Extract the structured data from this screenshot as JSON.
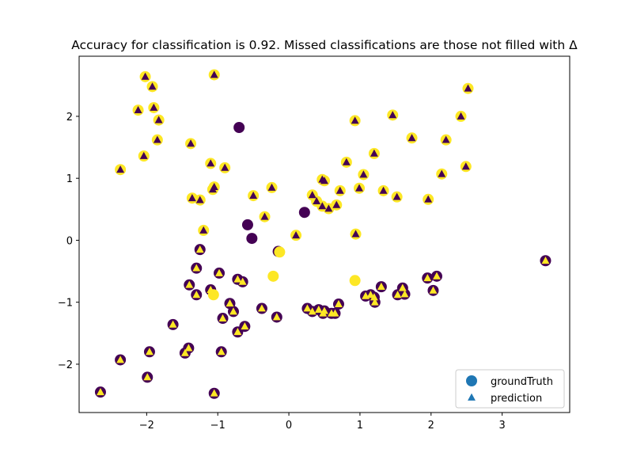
{
  "chart_data": {
    "type": "scatter",
    "title": "Accuracy for classification is 0.92. Missed classifications are those not filled with Δ",
    "xlabel": "",
    "ylabel": "",
    "xlim": [
      -2.95,
      3.95
    ],
    "ylim": [
      -2.78,
      2.97
    ],
    "xticks": [
      -2,
      -1,
      0,
      1,
      2,
      3
    ],
    "yticks": [
      -2,
      -1,
      0,
      1,
      2
    ],
    "grid": false,
    "legend_position": "lower-right",
    "colors": {
      "class0": "#440154",
      "class1": "#fde725",
      "legend": "#1f77b4",
      "axes": "#000000"
    },
    "legend": [
      {
        "label": "groundTruth",
        "marker": "circle"
      },
      {
        "label": "prediction",
        "marker": "triangle"
      }
    ],
    "series": [
      {
        "name": "groundTruth",
        "points": [
          {
            "x": -2.02,
            "y": 2.64,
            "c": 1
          },
          {
            "x": -1.92,
            "y": 2.48,
            "c": 1
          },
          {
            "x": -1.9,
            "y": 2.14,
            "c": 1
          },
          {
            "x": -2.12,
            "y": 2.1,
            "c": 1
          },
          {
            "x": -1.83,
            "y": 1.94,
            "c": 1
          },
          {
            "x": -1.85,
            "y": 1.62,
            "c": 1
          },
          {
            "x": -2.04,
            "y": 1.36,
            "c": 1
          },
          {
            "x": -2.37,
            "y": 1.14,
            "c": 1
          },
          {
            "x": -1.05,
            "y": 2.67,
            "c": 1
          },
          {
            "x": -1.38,
            "y": 1.56,
            "c": 1
          },
          {
            "x": -1.1,
            "y": 1.24,
            "c": 1
          },
          {
            "x": -0.9,
            "y": 1.17,
            "c": 1
          },
          {
            "x": -1.05,
            "y": 0.86,
            "c": 1
          },
          {
            "x": -1.07,
            "y": 0.82,
            "c": 1
          },
          {
            "x": -1.36,
            "y": 0.68,
            "c": 1
          },
          {
            "x": -1.25,
            "y": 0.65,
            "c": 1
          },
          {
            "x": -0.5,
            "y": 0.72,
            "c": 1
          },
          {
            "x": -0.24,
            "y": 0.85,
            "c": 1
          },
          {
            "x": -0.34,
            "y": 0.38,
            "c": 1
          },
          {
            "x": -1.2,
            "y": 0.16,
            "c": 1
          },
          {
            "x": -0.7,
            "y": 1.82,
            "c": 0
          },
          {
            "x": -0.58,
            "y": 0.25,
            "c": 0
          },
          {
            "x": -0.52,
            "y": 0.03,
            "c": 0
          },
          {
            "x": 0.22,
            "y": 0.45,
            "c": 0
          },
          {
            "x": 0.47,
            "y": 0.98,
            "c": 1
          },
          {
            "x": 0.5,
            "y": 0.96,
            "c": 1
          },
          {
            "x": 0.33,
            "y": 0.73,
            "c": 1
          },
          {
            "x": 0.39,
            "y": 0.63,
            "c": 1
          },
          {
            "x": 0.47,
            "y": 0.55,
            "c": 1
          },
          {
            "x": 0.56,
            "y": 0.51,
            "c": 1
          },
          {
            "x": 0.67,
            "y": 0.57,
            "c": 1
          },
          {
            "x": 0.72,
            "y": 0.8,
            "c": 1
          },
          {
            "x": 0.81,
            "y": 1.26,
            "c": 1
          },
          {
            "x": 0.93,
            "y": 1.93,
            "c": 1
          },
          {
            "x": 1.05,
            "y": 1.06,
            "c": 1
          },
          {
            "x": 0.99,
            "y": 0.84,
            "c": 1
          },
          {
            "x": 1.2,
            "y": 1.4,
            "c": 1
          },
          {
            "x": 1.46,
            "y": 2.02,
            "c": 1
          },
          {
            "x": 1.33,
            "y": 0.8,
            "c": 1
          },
          {
            "x": 1.52,
            "y": 0.7,
            "c": 1
          },
          {
            "x": 1.73,
            "y": 1.65,
            "c": 1
          },
          {
            "x": 1.96,
            "y": 0.66,
            "c": 1
          },
          {
            "x": 2.15,
            "y": 1.07,
            "c": 1
          },
          {
            "x": 2.21,
            "y": 1.62,
            "c": 1
          },
          {
            "x": 2.42,
            "y": 2.0,
            "c": 1
          },
          {
            "x": 2.52,
            "y": 2.45,
            "c": 1
          },
          {
            "x": 2.49,
            "y": 1.19,
            "c": 1
          },
          {
            "x": 0.1,
            "y": 0.08,
            "c": 1
          },
          {
            "x": 0.94,
            "y": 0.1,
            "c": 1
          },
          {
            "x": -1.25,
            "y": -0.15,
            "c": 0
          },
          {
            "x": -1.3,
            "y": -0.45,
            "c": 0
          },
          {
            "x": -1.4,
            "y": -0.72,
            "c": 0
          },
          {
            "x": -1.3,
            "y": -0.88,
            "c": 0
          },
          {
            "x": -0.98,
            "y": -0.53,
            "c": 0
          },
          {
            "x": -1.1,
            "y": -0.8,
            "c": 0
          },
          {
            "x": -0.72,
            "y": -0.63,
            "c": 0
          },
          {
            "x": -0.65,
            "y": -0.67,
            "c": 0
          },
          {
            "x": -0.83,
            "y": -1.02,
            "c": 0
          },
          {
            "x": -0.78,
            "y": -1.15,
            "c": 0
          },
          {
            "x": -0.93,
            "y": -1.26,
            "c": 0
          },
          {
            "x": -0.38,
            "y": -1.1,
            "c": 0
          },
          {
            "x": -0.17,
            "y": -1.24,
            "c": 0
          },
          {
            "x": -0.62,
            "y": -1.39,
            "c": 0
          },
          {
            "x": -0.72,
            "y": -1.48,
            "c": 0
          },
          {
            "x": -1.63,
            "y": -1.36,
            "c": 0
          },
          {
            "x": -1.41,
            "y": -1.74,
            "c": 0
          },
          {
            "x": -1.46,
            "y": -1.82,
            "c": 0
          },
          {
            "x": -0.95,
            "y": -1.8,
            "c": 0
          },
          {
            "x": -1.96,
            "y": -1.8,
            "c": 0
          },
          {
            "x": -2.37,
            "y": -1.93,
            "c": 0
          },
          {
            "x": -1.99,
            "y": -2.21,
            "c": 0
          },
          {
            "x": -2.65,
            "y": -2.45,
            "c": 0
          },
          {
            "x": -1.05,
            "y": -2.47,
            "c": 0
          },
          {
            "x": -0.15,
            "y": -0.18,
            "c": 0
          },
          {
            "x": -0.13,
            "y": -0.19,
            "c": 1
          },
          {
            "x": -0.22,
            "y": -0.58,
            "c": 1
          },
          {
            "x": 0.93,
            "y": -0.65,
            "c": 1
          },
          {
            "x": -1.06,
            "y": -0.88,
            "c": 1
          },
          {
            "x": 0.26,
            "y": -1.1,
            "c": 0
          },
          {
            "x": 0.33,
            "y": -1.15,
            "c": 0
          },
          {
            "x": 0.42,
            "y": -1.12,
            "c": 0
          },
          {
            "x": 0.48,
            "y": -1.18,
            "c": 0
          },
          {
            "x": 0.5,
            "y": -1.14,
            "c": 0
          },
          {
            "x": 0.6,
            "y": -1.18,
            "c": 0
          },
          {
            "x": 0.65,
            "y": -1.18,
            "c": 0
          },
          {
            "x": 0.7,
            "y": -1.03,
            "c": 0
          },
          {
            "x": 1.08,
            "y": -0.9,
            "c": 0
          },
          {
            "x": 1.15,
            "y": -0.88,
            "c": 0
          },
          {
            "x": 1.2,
            "y": -0.92,
            "c": 0
          },
          {
            "x": 1.21,
            "y": -1.0,
            "c": 0
          },
          {
            "x": 1.3,
            "y": -0.75,
            "c": 0
          },
          {
            "x": 1.53,
            "y": -0.88,
            "c": 0
          },
          {
            "x": 1.6,
            "y": -0.77,
            "c": 0
          },
          {
            "x": 1.63,
            "y": -0.87,
            "c": 0
          },
          {
            "x": 1.95,
            "y": -0.61,
            "c": 0
          },
          {
            "x": 2.08,
            "y": -0.58,
            "c": 0
          },
          {
            "x": 2.03,
            "y": -0.81,
            "c": 0
          },
          {
            "x": 3.61,
            "y": -0.33,
            "c": 0
          }
        ]
      },
      {
        "name": "prediction",
        "points": [
          {
            "x": -2.02,
            "y": 2.64,
            "c": 0
          },
          {
            "x": -1.92,
            "y": 2.48,
            "c": 0
          },
          {
            "x": -1.9,
            "y": 2.14,
            "c": 0
          },
          {
            "x": -2.12,
            "y": 2.1,
            "c": 0
          },
          {
            "x": -1.83,
            "y": 1.94,
            "c": 0
          },
          {
            "x": -1.85,
            "y": 1.62,
            "c": 0
          },
          {
            "x": -2.04,
            "y": 1.36,
            "c": 0
          },
          {
            "x": -2.37,
            "y": 1.14,
            "c": 0
          },
          {
            "x": -1.05,
            "y": 2.67,
            "c": 0
          },
          {
            "x": -1.38,
            "y": 1.56,
            "c": 0
          },
          {
            "x": -1.1,
            "y": 1.24,
            "c": 0
          },
          {
            "x": -0.9,
            "y": 1.17,
            "c": 0
          },
          {
            "x": -1.05,
            "y": 0.86,
            "c": 0
          },
          {
            "x": -1.07,
            "y": 0.82,
            "c": 0
          },
          {
            "x": -1.36,
            "y": 0.68,
            "c": 0
          },
          {
            "x": -1.25,
            "y": 0.65,
            "c": 0
          },
          {
            "x": -0.5,
            "y": 0.72,
            "c": 0
          },
          {
            "x": -0.24,
            "y": 0.85,
            "c": 0
          },
          {
            "x": -0.34,
            "y": 0.38,
            "c": 0
          },
          {
            "x": -1.2,
            "y": 0.16,
            "c": 0
          },
          {
            "x": 0.47,
            "y": 0.98,
            "c": 0
          },
          {
            "x": 0.5,
            "y": 0.96,
            "c": 0
          },
          {
            "x": 0.33,
            "y": 0.73,
            "c": 0
          },
          {
            "x": 0.39,
            "y": 0.63,
            "c": 0
          },
          {
            "x": 0.47,
            "y": 0.55,
            "c": 0
          },
          {
            "x": 0.56,
            "y": 0.51,
            "c": 0
          },
          {
            "x": 0.67,
            "y": 0.57,
            "c": 0
          },
          {
            "x": 0.72,
            "y": 0.8,
            "c": 0
          },
          {
            "x": 0.81,
            "y": 1.26,
            "c": 0
          },
          {
            "x": 0.93,
            "y": 1.93,
            "c": 0
          },
          {
            "x": 1.05,
            "y": 1.06,
            "c": 0
          },
          {
            "x": 0.99,
            "y": 0.84,
            "c": 0
          },
          {
            "x": 1.2,
            "y": 1.4,
            "c": 0
          },
          {
            "x": 1.46,
            "y": 2.02,
            "c": 0
          },
          {
            "x": 1.33,
            "y": 0.8,
            "c": 0
          },
          {
            "x": 1.52,
            "y": 0.7,
            "c": 0
          },
          {
            "x": 1.73,
            "y": 1.65,
            "c": 0
          },
          {
            "x": 1.96,
            "y": 0.66,
            "c": 0
          },
          {
            "x": 2.15,
            "y": 1.07,
            "c": 0
          },
          {
            "x": 2.21,
            "y": 1.62,
            "c": 0
          },
          {
            "x": 2.42,
            "y": 2.0,
            "c": 0
          },
          {
            "x": 2.52,
            "y": 2.45,
            "c": 0
          },
          {
            "x": 2.49,
            "y": 1.19,
            "c": 0
          },
          {
            "x": 0.1,
            "y": 0.08,
            "c": 0
          },
          {
            "x": 0.94,
            "y": 0.1,
            "c": 0
          },
          {
            "x": -1.25,
            "y": -0.15,
            "c": 1
          },
          {
            "x": -1.3,
            "y": -0.45,
            "c": 1
          },
          {
            "x": -1.4,
            "y": -0.72,
            "c": 1
          },
          {
            "x": -1.3,
            "y": -0.88,
            "c": 1
          },
          {
            "x": -0.98,
            "y": -0.53,
            "c": 1
          },
          {
            "x": -1.1,
            "y": -0.8,
            "c": 1
          },
          {
            "x": -0.72,
            "y": -0.63,
            "c": 1
          },
          {
            "x": -0.65,
            "y": -0.67,
            "c": 1
          },
          {
            "x": -0.83,
            "y": -1.02,
            "c": 1
          },
          {
            "x": -0.78,
            "y": -1.15,
            "c": 1
          },
          {
            "x": -0.93,
            "y": -1.26,
            "c": 1
          },
          {
            "x": -0.38,
            "y": -1.1,
            "c": 1
          },
          {
            "x": -0.17,
            "y": -1.24,
            "c": 1
          },
          {
            "x": -0.62,
            "y": -1.39,
            "c": 1
          },
          {
            "x": -0.72,
            "y": -1.48,
            "c": 1
          },
          {
            "x": -1.63,
            "y": -1.36,
            "c": 1
          },
          {
            "x": -1.41,
            "y": -1.74,
            "c": 1
          },
          {
            "x": -1.46,
            "y": -1.82,
            "c": 1
          },
          {
            "x": -0.95,
            "y": -1.8,
            "c": 1
          },
          {
            "x": -1.96,
            "y": -1.8,
            "c": 1
          },
          {
            "x": -2.37,
            "y": -1.93,
            "c": 1
          },
          {
            "x": -1.99,
            "y": -2.21,
            "c": 1
          },
          {
            "x": -2.65,
            "y": -2.45,
            "c": 1
          },
          {
            "x": -1.05,
            "y": -2.47,
            "c": 1
          },
          {
            "x": 0.26,
            "y": -1.1,
            "c": 1
          },
          {
            "x": 0.33,
            "y": -1.15,
            "c": 1
          },
          {
            "x": 0.42,
            "y": -1.12,
            "c": 1
          },
          {
            "x": 0.48,
            "y": -1.18,
            "c": 1
          },
          {
            "x": 0.5,
            "y": -1.14,
            "c": 1
          },
          {
            "x": 0.6,
            "y": -1.18,
            "c": 1
          },
          {
            "x": 0.65,
            "y": -1.18,
            "c": 1
          },
          {
            "x": 0.7,
            "y": -1.03,
            "c": 1
          },
          {
            "x": 1.08,
            "y": -0.9,
            "c": 1
          },
          {
            "x": 1.15,
            "y": -0.88,
            "c": 1
          },
          {
            "x": 1.2,
            "y": -0.92,
            "c": 1
          },
          {
            "x": 1.21,
            "y": -1.0,
            "c": 1
          },
          {
            "x": 1.3,
            "y": -0.75,
            "c": 1
          },
          {
            "x": 1.53,
            "y": -0.88,
            "c": 1
          },
          {
            "x": 1.6,
            "y": -0.77,
            "c": 1
          },
          {
            "x": 1.63,
            "y": -0.87,
            "c": 1
          },
          {
            "x": 1.95,
            "y": -0.61,
            "c": 1
          },
          {
            "x": 2.08,
            "y": -0.58,
            "c": 1
          },
          {
            "x": 2.03,
            "y": -0.81,
            "c": 1
          },
          {
            "x": 3.61,
            "y": -0.33,
            "c": 1
          }
        ]
      }
    ]
  }
}
